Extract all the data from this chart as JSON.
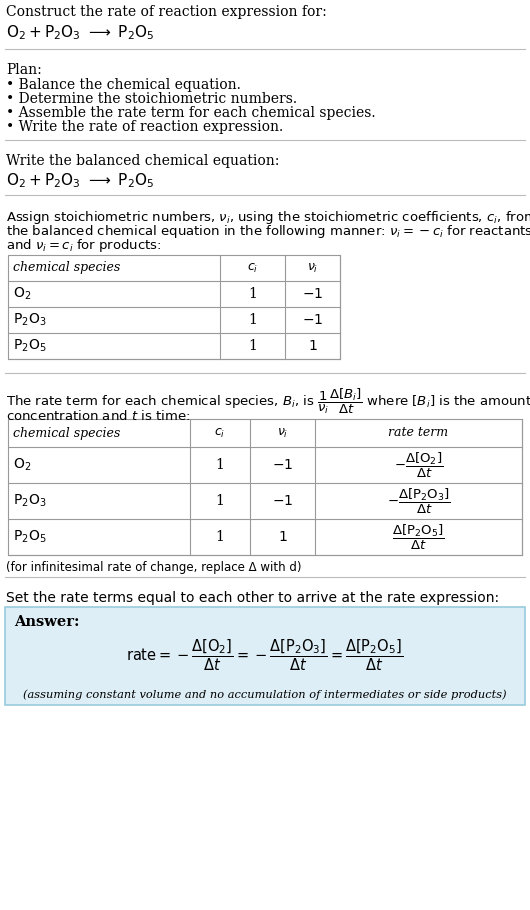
{
  "bg_color": "#ffffff",
  "text_color": "#000000",
  "answer_bg": "#ddeef6",
  "answer_border": "#99ccdd",
  "title_text": "Construct the rate of reaction expression for:",
  "plan_header": "Plan:",
  "plan_bullets": [
    "• Balance the chemical equation.",
    "• Determine the stoichiometric numbers.",
    "• Assemble the rate term for each chemical species.",
    "• Write the rate of reaction expression."
  ],
  "balanced_header": "Write the balanced chemical equation:",
  "stoich_intro_lines": [
    "Assign stoichiometric numbers, $\\nu_i$, using the stoichiometric coefficients, $c_i$, from",
    "the balanced chemical equation in the following manner: $\\nu_i = -c_i$ for reactants",
    "and $\\nu_i = c_i$ for products:"
  ],
  "table1_species": [
    "$\\mathrm{O_2}$",
    "$\\mathrm{P_2O_3}$",
    "$\\mathrm{P_2O_5}$"
  ],
  "table1_ci": [
    "1",
    "1",
    "1"
  ],
  "table1_ni": [
    "$-1$",
    "$-1$",
    "$1$"
  ],
  "rate_intro_line1": "The rate term for each chemical species, $B_i$, is $\\dfrac{1}{\\nu_i}\\dfrac{\\Delta[B_i]}{\\Delta t}$ where $[B_i]$ is the amount",
  "rate_intro_line2": "concentration and $t$ is time:",
  "table2_species": [
    "$\\mathrm{O_2}$",
    "$\\mathrm{P_2O_3}$",
    "$\\mathrm{P_2O_5}$"
  ],
  "table2_ci": [
    "1",
    "1",
    "1"
  ],
  "table2_ni": [
    "$-1$",
    "$-1$",
    "$1$"
  ],
  "table2_rate": [
    "$-\\dfrac{\\Delta[\\mathrm{O_2}]}{\\Delta t}$",
    "$-\\dfrac{\\Delta[\\mathrm{P_2O_3}]}{\\Delta t}$",
    "$\\dfrac{\\Delta[\\mathrm{P_2O_5}]}{\\Delta t}$"
  ],
  "infinitesimal_note": "(for infinitesimal rate of change, replace Δ with d)",
  "set_equal_text": "Set the rate terms equal to each other to arrive at the rate expression:",
  "answer_label": "Answer:",
  "answer_note": "(assuming constant volume and no accumulation of intermediates or side products)"
}
